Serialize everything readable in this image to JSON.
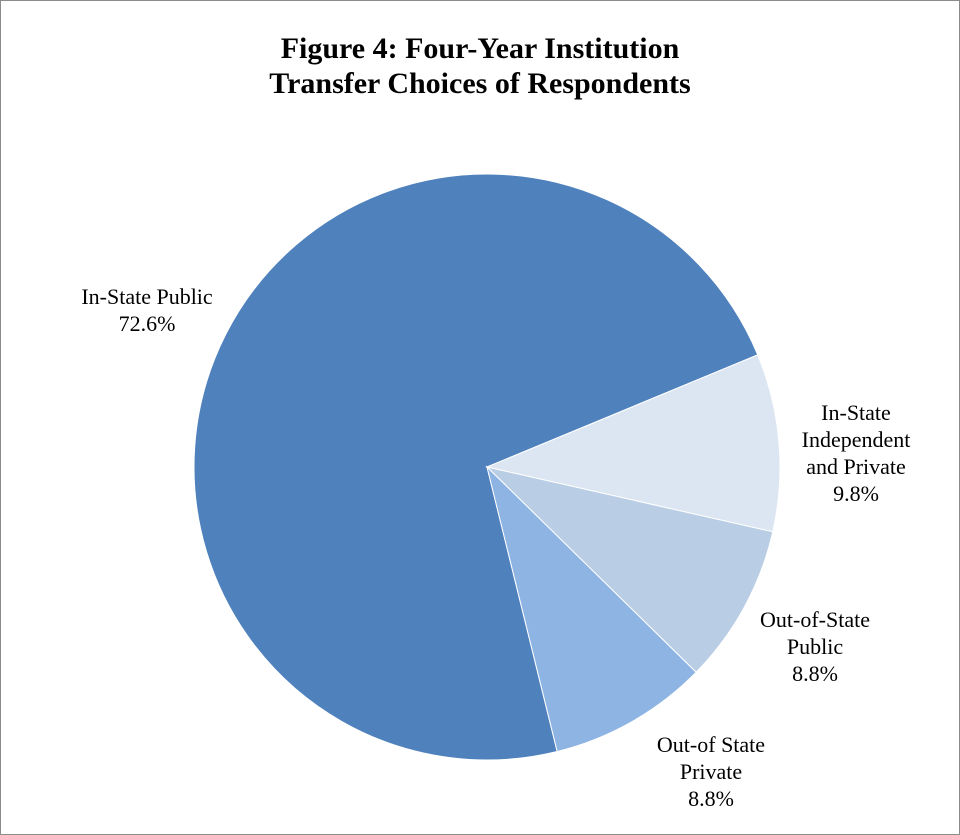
{
  "chart_data": {
    "type": "pie",
    "title": [
      "Figure 4: Four-Year Institution",
      "Transfer Choices of Respondents"
    ],
    "slices": [
      {
        "label_lines": [
          "In-State Public"
        ],
        "value_label": "72.6%",
        "value": 72.6,
        "color": "#4f81bd"
      },
      {
        "label_lines": [
          "In-State",
          "Independent",
          "and Private"
        ],
        "value_label": "9.8%",
        "value": 9.8,
        "color": "#dce6f2"
      },
      {
        "label_lines": [
          "Out-of-State",
          "Public"
        ],
        "value_label": "8.8%",
        "value": 8.8,
        "color": "#b9cde5"
      },
      {
        "label_lines": [
          "Out-of State",
          "Private"
        ],
        "value_label": "8.8%",
        "value": 8.8,
        "color": "#8eb4e3"
      }
    ],
    "legend": "none"
  }
}
